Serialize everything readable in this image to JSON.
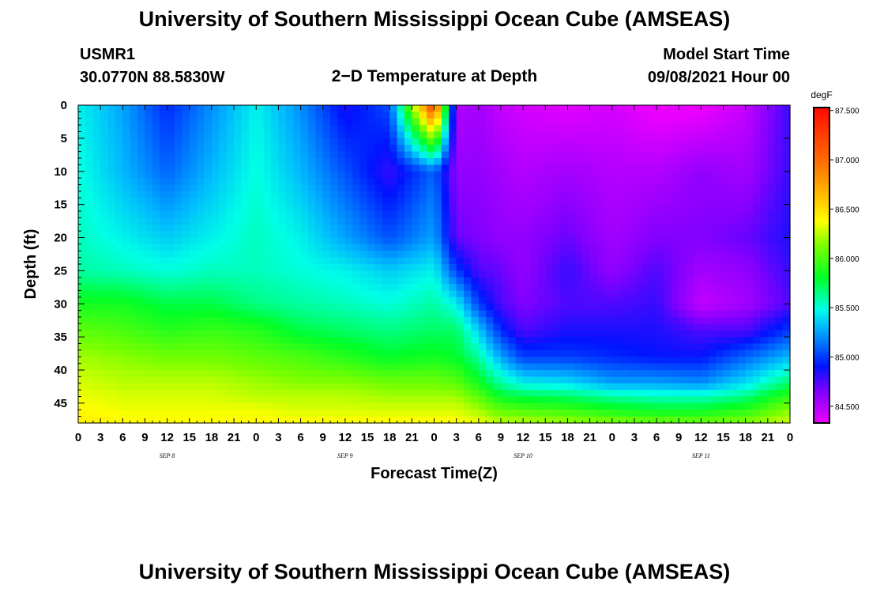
{
  "header": {
    "title": "University of Southern Mississippi Ocean Cube (AMSEAS)",
    "station": "USMR1",
    "location": "30.0770N  88.5830W",
    "plot_title": "2−D Temperature at Depth",
    "model_start_label": "Model Start Time",
    "model_start_value": "09/08/2021 Hour 00"
  },
  "footer": {
    "title": "University of Southern Mississippi Ocean Cube (AMSEAS)"
  },
  "chart_data": {
    "type": "heatmap",
    "title": "2−D Temperature at Depth",
    "xlabel": "Forecast Time(Z)",
    "ylabel": "Depth (ft)",
    "x_ticks": [
      "0",
      "3",
      "6",
      "9",
      "12",
      "15",
      "18",
      "21",
      "0",
      "3",
      "6",
      "9",
      "12",
      "15",
      "18",
      "21",
      "0",
      "3",
      "6",
      "9",
      "12",
      "15",
      "18",
      "21",
      "0",
      "3",
      "6",
      "9",
      "12",
      "15",
      "18",
      "21",
      "0"
    ],
    "x_range_hours": [
      0,
      96
    ],
    "date_labels": [
      {
        "label": "SEP 8",
        "hour": 12
      },
      {
        "label": "SEP 9",
        "hour": 36
      },
      {
        "label": "SEP 10",
        "hour": 60
      },
      {
        "label": "SEP 11",
        "hour": 84
      }
    ],
    "y_ticks": [
      0,
      5,
      10,
      15,
      20,
      25,
      30,
      35,
      40,
      45
    ],
    "y_range": [
      0,
      48
    ],
    "y_inverted": true,
    "colorbar": {
      "units": "degF",
      "ticks": [
        "84.500",
        "85.000",
        "85.500",
        "86.000",
        "86.500",
        "87.000",
        "87.500"
      ],
      "range": [
        84.33,
        87.53
      ]
    },
    "times": [
      0,
      6,
      12,
      18,
      24,
      30,
      36,
      42,
      48,
      51,
      54,
      57,
      60,
      66,
      72,
      78,
      84,
      90,
      96
    ],
    "depths": [
      0,
      10,
      20,
      25,
      30,
      34,
      38,
      42,
      44,
      46,
      48
    ],
    "values": [
      [
        85.45,
        85.25,
        84.95,
        85.2,
        85.45,
        85.2,
        84.85,
        85.05,
        87.3,
        84.5,
        84.55,
        84.45,
        84.4,
        84.35,
        84.4,
        84.3,
        84.3,
        84.45,
        84.8
      ],
      [
        85.5,
        85.3,
        85.1,
        85.3,
        85.5,
        85.3,
        85.05,
        84.8,
        85.1,
        84.6,
        84.6,
        84.55,
        84.5,
        84.55,
        84.5,
        84.5,
        84.6,
        84.55,
        84.8
      ],
      [
        85.55,
        85.45,
        85.35,
        85.45,
        85.55,
        85.45,
        85.25,
        85.05,
        85.25,
        84.7,
        84.65,
        84.6,
        84.6,
        84.7,
        84.55,
        84.65,
        84.65,
        84.7,
        84.85
      ],
      [
        85.6,
        85.55,
        85.5,
        85.55,
        85.55,
        85.5,
        85.45,
        85.35,
        85.45,
        85.0,
        84.75,
        84.7,
        84.6,
        84.8,
        84.6,
        84.75,
        84.55,
        84.6,
        84.8
      ],
      [
        85.85,
        85.85,
        85.75,
        85.75,
        85.65,
        85.6,
        85.55,
        85.5,
        85.6,
        85.45,
        85.0,
        84.75,
        84.65,
        84.75,
        84.75,
        84.8,
        84.45,
        84.55,
        84.75
      ],
      [
        86.05,
        86.0,
        85.9,
        85.95,
        85.9,
        85.75,
        85.7,
        85.65,
        85.7,
        85.7,
        85.35,
        84.95,
        84.75,
        84.85,
        84.85,
        84.85,
        84.75,
        84.75,
        85.0
      ],
      [
        86.2,
        86.15,
        86.1,
        86.1,
        86.05,
        86.0,
        85.9,
        85.8,
        85.85,
        85.8,
        85.6,
        85.25,
        85.0,
        85.0,
        84.95,
        84.9,
        84.9,
        85.1,
        85.3
      ],
      [
        86.3,
        86.25,
        86.25,
        86.25,
        86.2,
        86.15,
        86.15,
        86.1,
        86.1,
        86.05,
        85.85,
        85.6,
        85.45,
        85.4,
        85.25,
        85.25,
        85.2,
        85.4,
        85.7
      ],
      [
        86.35,
        86.3,
        86.3,
        86.3,
        86.25,
        86.25,
        86.25,
        86.2,
        86.2,
        86.2,
        86.05,
        85.8,
        85.75,
        85.7,
        85.6,
        85.55,
        85.55,
        85.65,
        85.95
      ],
      [
        86.4,
        86.35,
        86.35,
        86.35,
        86.35,
        86.3,
        86.3,
        86.3,
        86.3,
        86.3,
        86.2,
        86.05,
        86.0,
        85.95,
        85.85,
        85.8,
        85.8,
        85.9,
        86.15
      ],
      [
        86.45,
        86.4,
        86.4,
        86.4,
        86.4,
        86.4,
        86.4,
        86.4,
        86.4,
        86.4,
        86.35,
        86.25,
        86.25,
        86.2,
        86.15,
        86.1,
        86.1,
        86.15,
        86.3
      ]
    ]
  }
}
